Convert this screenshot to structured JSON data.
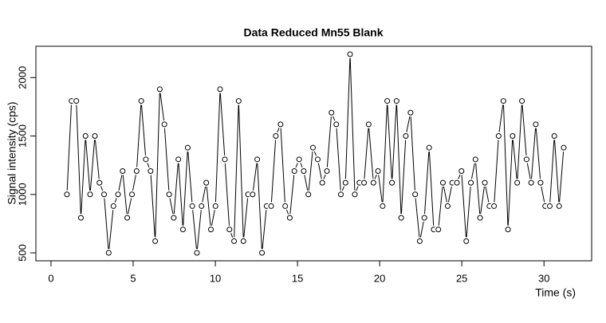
{
  "chart_data": {
    "type": "line",
    "title": "Data Reduced Mn55 Blank",
    "x_label": "Time (s)",
    "y_label": "Signal intensity (cps)",
    "color": "#000000",
    "x": [
      0.97,
      1.25,
      1.54,
      1.82,
      2.1,
      2.38,
      2.67,
      2.95,
      3.23,
      3.51,
      3.8,
      4.08,
      4.36,
      4.64,
      4.93,
      5.21,
      5.49,
      5.77,
      6.06,
      6.34,
      6.62,
      6.9,
      7.19,
      7.47,
      7.75,
      8.03,
      8.32,
      8.6,
      8.88,
      9.16,
      9.45,
      9.73,
      10.01,
      10.29,
      10.58,
      10.86,
      11.14,
      11.42,
      11.71,
      11.99,
      12.27,
      12.55,
      12.84,
      13.12,
      13.4,
      13.68,
      13.97,
      14.25,
      14.53,
      14.81,
      15.1,
      15.38,
      15.66,
      15.94,
      16.23,
      16.51,
      16.79,
      17.07,
      17.36,
      17.64,
      17.92,
      18.2,
      18.49,
      18.77,
      19.05,
      19.33,
      19.62,
      19.9,
      20.18,
      20.46,
      20.75,
      21.03,
      21.31,
      21.59,
      21.88,
      22.16,
      22.44,
      22.72,
      23.01,
      23.29,
      23.57,
      23.85,
      24.14,
      24.42,
      24.7,
      24.98,
      25.27,
      25.55,
      25.83,
      26.11,
      26.4,
      26.68,
      26.96,
      27.24,
      27.53,
      27.81,
      28.09,
      28.37,
      28.66,
      28.94,
      29.22,
      29.5,
      29.79,
      30.07,
      30.35,
      30.63,
      30.92,
      31.2
    ],
    "values": [
      1000,
      1800,
      1800,
      800,
      1500,
      1000,
      1500,
      1100,
      1000,
      500,
      900,
      1000,
      1200,
      800,
      1000,
      1200,
      1800,
      1300,
      1200,
      600,
      1900,
      1600,
      1000,
      800,
      1300,
      700,
      1400,
      900,
      500,
      900,
      1100,
      700,
      900,
      1900,
      1300,
      700,
      600,
      1800,
      600,
      1000,
      1000,
      1300,
      500,
      900,
      900,
      1500,
      1600,
      900,
      800,
      1200,
      1300,
      1200,
      1000,
      1400,
      1300,
      1100,
      1200,
      1700,
      1600,
      1000,
      1100,
      2200,
      1000,
      1100,
      1100,
      1600,
      1100,
      1200,
      900,
      1800,
      1100,
      1800,
      800,
      1500,
      1700,
      1000,
      600,
      800,
      1400,
      700,
      700,
      1100,
      900,
      1100,
      1100,
      1200,
      600,
      1100,
      1300,
      800,
      1100,
      900,
      900,
      1500,
      1800,
      700,
      1500,
      1100,
      1800,
      1300,
      1100,
      1600,
      1100,
      900,
      900,
      1500,
      900,
      1400
    ],
    "xlim": [
      -0.92,
      32.9
    ],
    "ylim": [
      432,
      2268
    ],
    "xticks": [
      0,
      5,
      10,
      15,
      20,
      25,
      30
    ],
    "yticks": [
      500,
      1000,
      1500,
      2000
    ]
  }
}
